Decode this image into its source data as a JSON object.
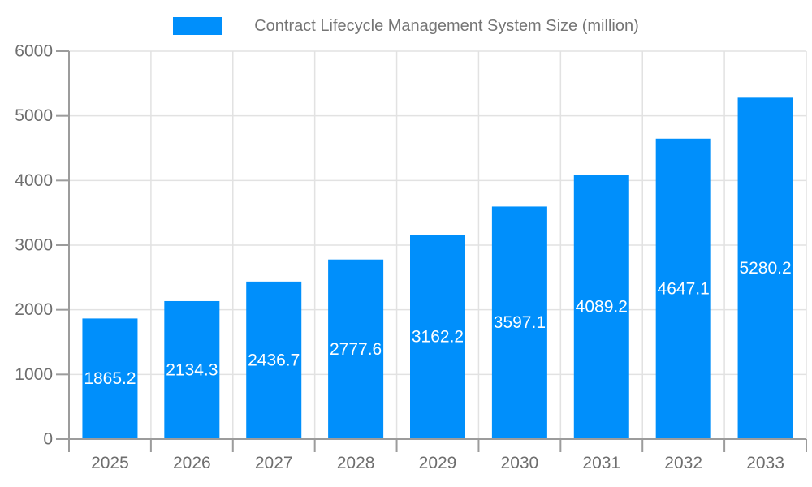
{
  "colors": {
    "bar": "#008FFB",
    "bar_label": "#ffffff",
    "legend_text": "#757575",
    "axis_text": "#6e6e6e",
    "axis_line": "#9c9c9c",
    "gridline": "#e2e2e2",
    "background": "#ffffff"
  },
  "chart_data": {
    "type": "bar",
    "title": "Contract Lifecycle Management System Size (million)",
    "legend": [
      "Contract Lifecycle Management System Size (million)"
    ],
    "legend_position": "top-center",
    "categories": [
      "2025",
      "2026",
      "2027",
      "2028",
      "2029",
      "2030",
      "2031",
      "2032",
      "2033"
    ],
    "values": [
      1865.2,
      2134.3,
      2436.7,
      2777.6,
      3162.2,
      3597.1,
      4089.2,
      4647.1,
      5280.2
    ],
    "xlabel": "",
    "ylabel": "",
    "ylim": [
      0,
      6000
    ],
    "yticks": [
      0,
      1000,
      2000,
      3000,
      4000,
      5000,
      6000
    ],
    "grid": true,
    "bar_label_position": "inside-center"
  }
}
